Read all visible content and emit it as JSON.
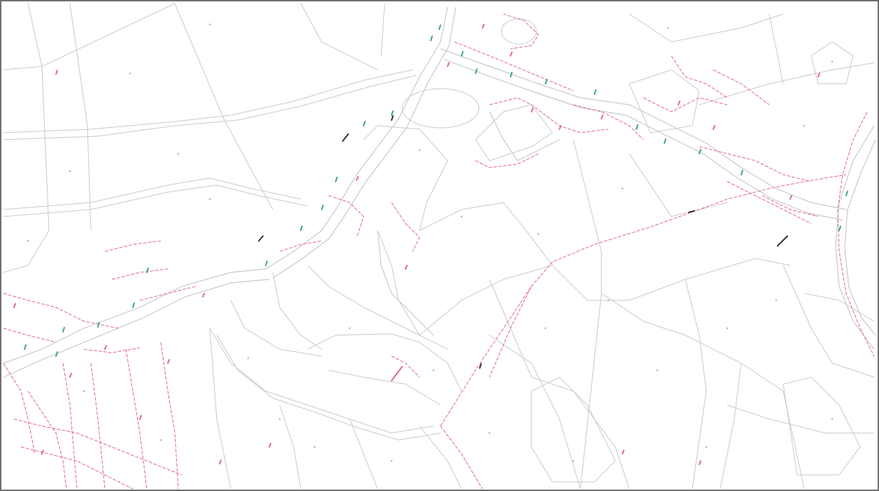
{
  "map": {
    "type": "cadastral-parcel-map",
    "text_labels": [],
    "colors": {
      "background": "#ffffff",
      "frame": "#6f6f6f",
      "parcel_boundary": "#c9c9cc",
      "legal_boundary": "#e0668f",
      "road_parcel_marker": "#3fa68f",
      "survey_marker": "#333333",
      "parcel_centroid": "#b8b8bd"
    },
    "layers": [
      "parcel-boundaries",
      "road-corridors",
      "legal-boundaries",
      "parcel-centroid-dots",
      "pink-parcel-markers",
      "green-parcel-markers",
      "black-survey-markers"
    ]
  }
}
